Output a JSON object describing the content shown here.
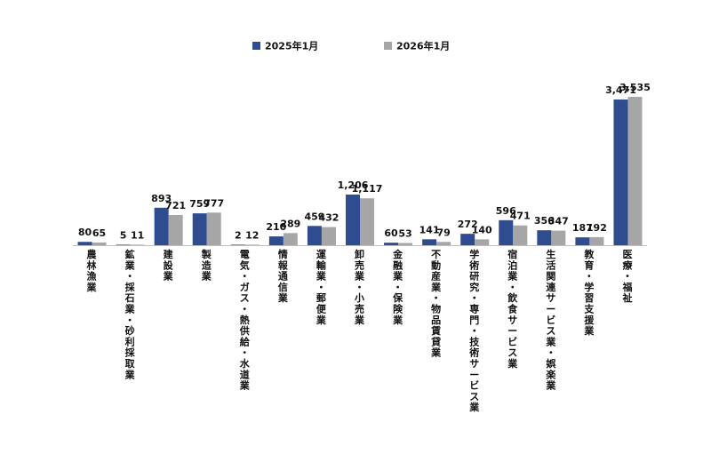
{
  "chart_data": {
    "type": "bar",
    "categories": [
      "農林漁業",
      "鉱業・採石業・砂利採取業",
      "建設業",
      "製造業",
      "電気・ガス・熱供給・水道業",
      "情報通信業",
      "運輸業・郵便業",
      "卸売業・小売業",
      "金融業・保険業",
      "不動産業・物品賃貸業",
      "学術研究・専門・技術サービス業",
      "宿泊業・飲食サービス業",
      "生活関連サービス業・娯楽業",
      "教育・学習支援業",
      "医療・福祉"
    ],
    "series": [
      {
        "name": "2025年1月",
        "color": "#2E4C8F",
        "values": [
          80,
          5,
          893,
          759,
          2,
          210,
          459,
          1206,
          60,
          141,
          272,
          596,
          356,
          187,
          3471
        ],
        "labels": [
          "80",
          "5",
          "893",
          "759",
          "2",
          "210",
          "459",
          "1,206",
          "60",
          "141",
          "272",
          "596",
          "356",
          "187",
          "3,471"
        ]
      },
      {
        "name": "2026年1月",
        "color": "#A6A6A6",
        "values": [
          65,
          11,
          721,
          777,
          12,
          289,
          432,
          1117,
          53,
          79,
          140,
          471,
          347,
          192,
          3535
        ],
        "labels": [
          "65",
          "11",
          "721",
          "777",
          "12",
          "289",
          "432",
          "1,117",
          "53",
          "79",
          "140",
          "471",
          "347",
          "192",
          "3,535"
        ]
      }
    ],
    "title": "",
    "xlabel": "",
    "ylabel": "",
    "ylim": [
      0,
      4000
    ],
    "grid": false,
    "legend_position": "top-center"
  }
}
